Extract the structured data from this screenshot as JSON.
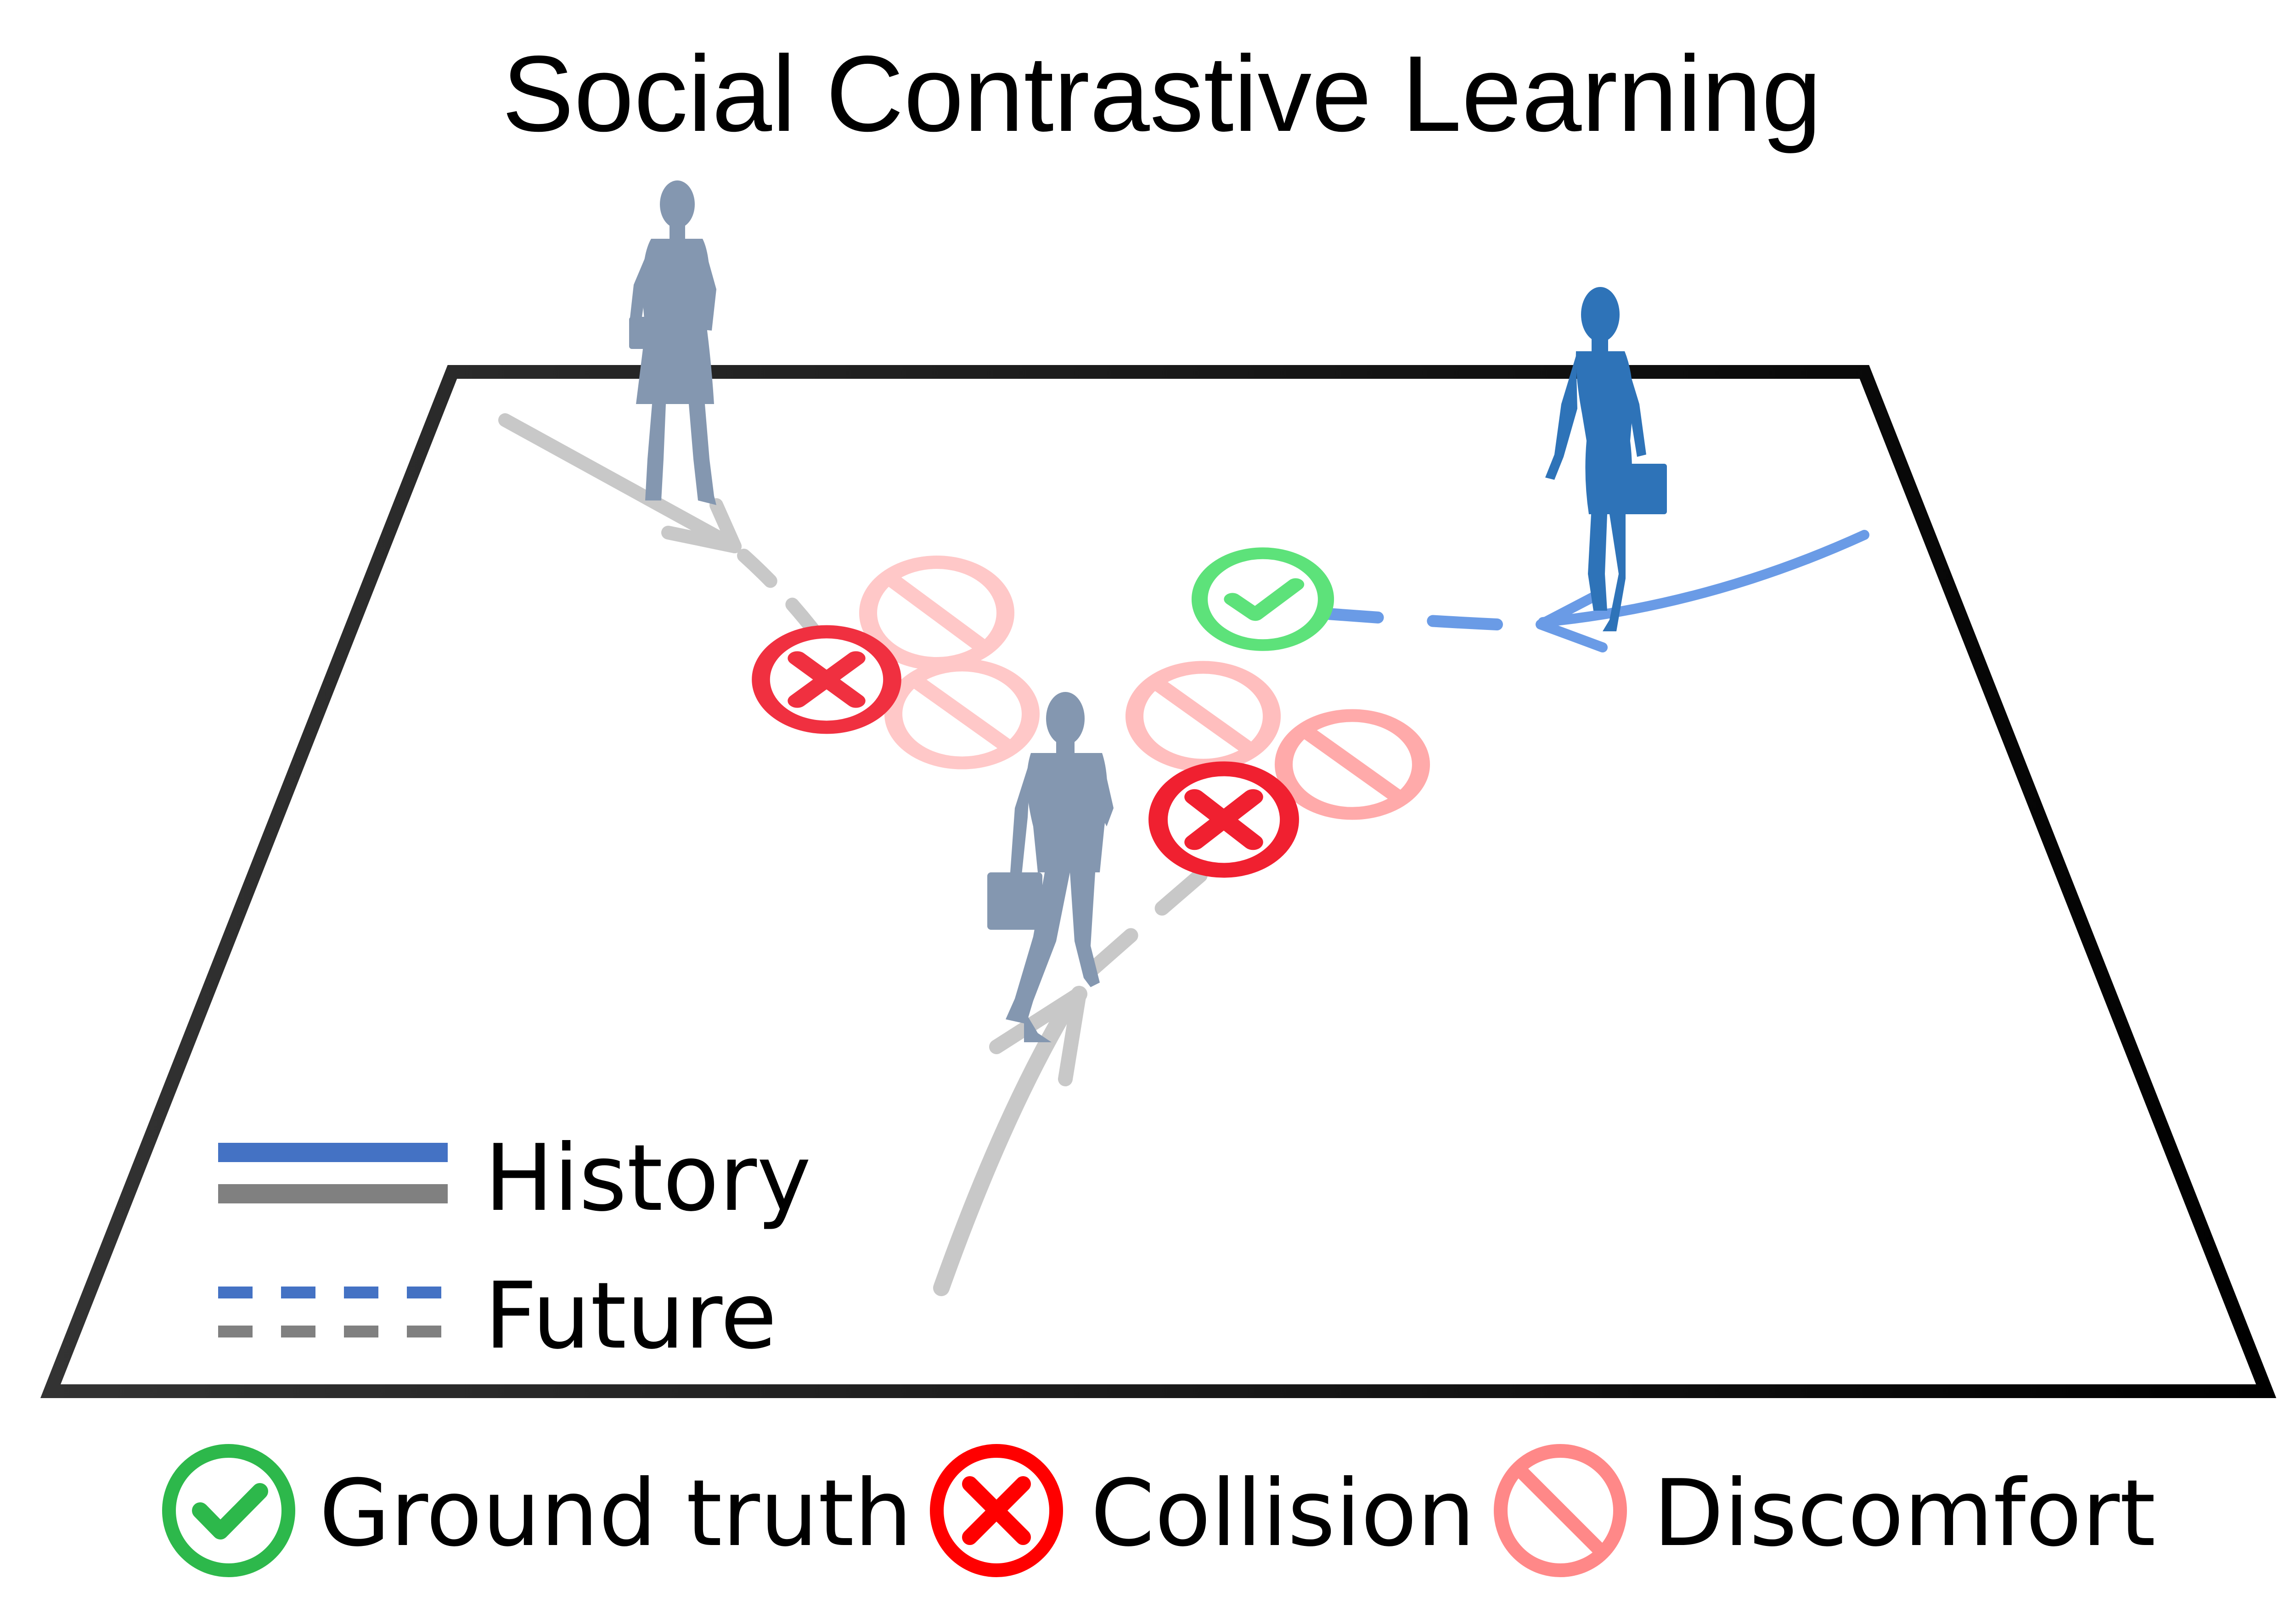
{
  "title": "Social Contrastive Learning",
  "line_legend": {
    "history_label": "History",
    "future_label": "Future"
  },
  "marker_legend": {
    "ground_truth_label": "Ground truth",
    "collision_label": "Collision",
    "discomfort_label": "Discomfort"
  },
  "colors": {
    "agent_blue": "#2E73B8",
    "agent_gray": "#8497B0",
    "history_blue": "#4472C4",
    "history_gray": "#808080",
    "trajectory_gray": "#C8C8C8",
    "trajectory_blue": "#6A9BE6",
    "ground_truth": "#2DB84B",
    "ground_truth_light": "#5DE27A",
    "collision": "#FF0000",
    "discomfort": "#FF8888",
    "discomfort_light": "#FFC8C8"
  },
  "icons": [
    "check-circle-icon",
    "x-circle-icon",
    "no-entry-circle-icon",
    "person-silhouette-icon",
    "briefcase-icon"
  ]
}
